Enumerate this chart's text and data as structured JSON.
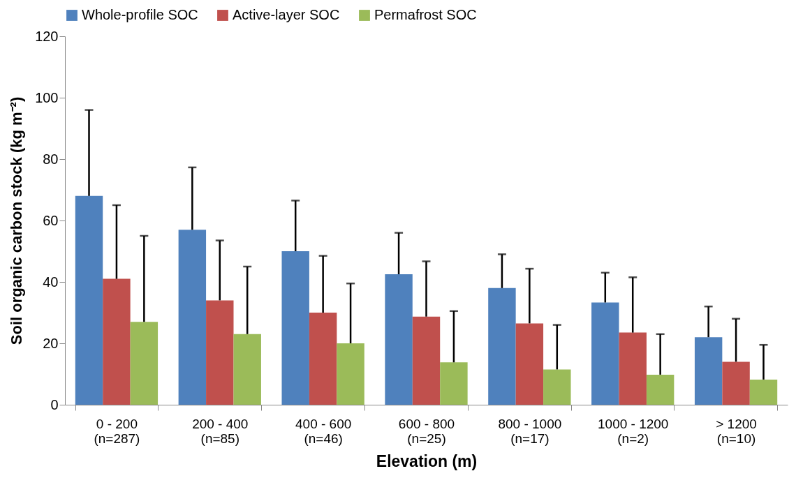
{
  "chart_data": {
    "type": "bar",
    "xlabel": "Elevation (m)",
    "ylabel": "Soil organic carbon stock (kg m⁻²)",
    "categories": [
      "0 - 200\n(n=287)",
      "200 - 400\n(n=85)",
      "400 - 600\n(n=46)",
      "600 - 800\n(n=25)",
      "800 - 1000\n(n=17)",
      "1000 - 1200\n(n=2)",
      "> 1200\n(n=10)"
    ],
    "series": [
      {
        "name": "Whole-profile SOC",
        "color": "#4f81bd",
        "values": [
          68,
          57,
          50,
          42.5,
          38,
          33.3,
          22
        ],
        "errors": [
          [
            68,
            96
          ],
          [
            57,
            77.3
          ],
          [
            50,
            66.5
          ],
          [
            42.5,
            56
          ],
          [
            38,
            49
          ],
          [
            33.3,
            43
          ],
          [
            22,
            32
          ]
        ]
      },
      {
        "name": "Active-layer SOC",
        "color": "#c0504d",
        "values": [
          41,
          34,
          30,
          28.7,
          26.5,
          23.5,
          14
        ],
        "errors": [
          [
            41,
            65
          ],
          [
            34,
            53.5
          ],
          [
            30,
            48.5
          ],
          [
            28.7,
            46.7
          ],
          [
            26.5,
            44.3
          ],
          [
            23.5,
            41.5
          ],
          [
            14,
            28
          ]
        ]
      },
      {
        "name": "Permafrost SOC",
        "color": "#9bbb59",
        "values": [
          27,
          23,
          20,
          13.8,
          11.5,
          9.8,
          8.2
        ],
        "errors": [
          [
            27,
            55
          ],
          [
            23,
            45
          ],
          [
            20,
            39.5
          ],
          [
            13.8,
            30.5
          ],
          [
            11.5,
            26
          ],
          [
            9.8,
            23
          ],
          [
            8.2,
            19.5
          ]
        ]
      }
    ],
    "ylim": [
      0,
      120
    ],
    "yticks": [
      0,
      20,
      40,
      60,
      80,
      100,
      120
    ],
    "grid": false,
    "legend": "top"
  }
}
